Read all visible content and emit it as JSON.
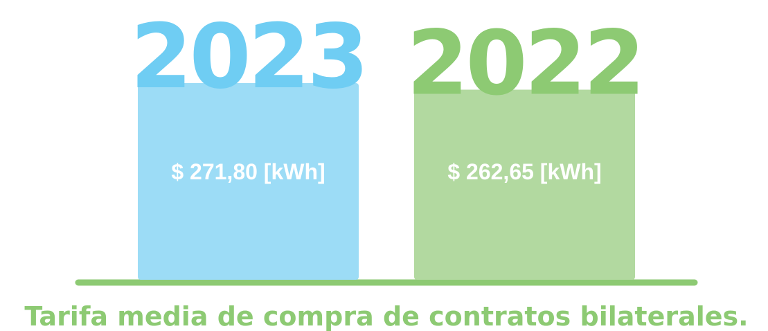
{
  "chart_data": {
    "type": "bar",
    "title": "Tarifa media de compra de contratos bilaterales.",
    "categories": [
      "2023",
      "2022"
    ],
    "values": [
      271.8,
      262.65
    ],
    "value_labels": [
      "$ 271,80 [kWh]",
      "$ 262,65 [kWh]"
    ],
    "colors": [
      "#9cdcf6",
      "#b2d9a0"
    ],
    "category_colors": [
      "#6fcdf3",
      "#8dca73"
    ]
  }
}
